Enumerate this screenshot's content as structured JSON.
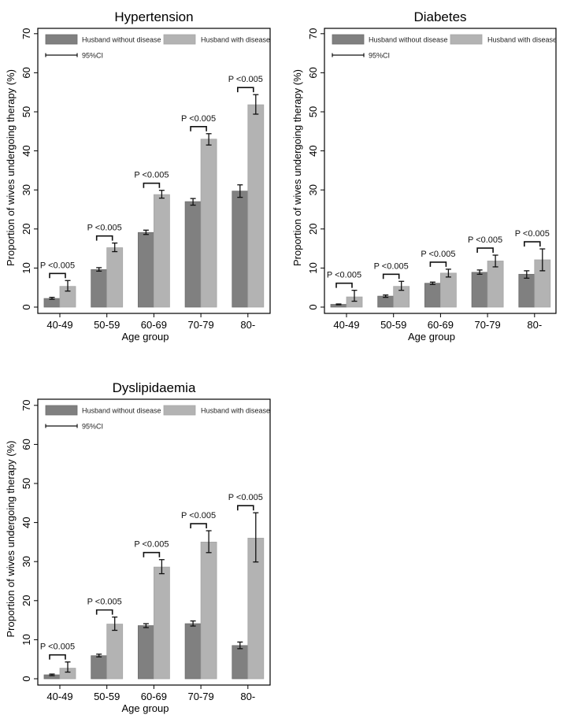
{
  "chart_data": [
    {
      "type": "bar",
      "title": "Hypertension",
      "xlabel": "Age group",
      "ylabel": "Proportion of wives undergoing therapy (%)",
      "ylim": [
        0,
        70
      ],
      "yticks": [
        0,
        10,
        20,
        30,
        40,
        50,
        60,
        70
      ],
      "categories": [
        "40-49",
        "50-59",
        "60-69",
        "70-79",
        "80-"
      ],
      "series": [
        {
          "name": "Husband without disease",
          "color": "#808080",
          "values": [
            2.2,
            9.6,
            19.1,
            27.0,
            29.7
          ],
          "ci_low": [
            2.0,
            9.2,
            18.6,
            26.1,
            28.1
          ],
          "ci_high": [
            2.5,
            10.1,
            19.7,
            27.8,
            31.3
          ]
        },
        {
          "name": "Husband with disease",
          "color": "#b3b3b3",
          "values": [
            5.3,
            15.2,
            28.8,
            43.0,
            51.8
          ],
          "ci_low": [
            4.1,
            14.2,
            27.9,
            41.5,
            49.4
          ],
          "ci_high": [
            6.8,
            16.4,
            29.9,
            44.4,
            54.4
          ]
        }
      ],
      "annotations": [
        "P <0.005",
        "P <0.005",
        "P <0.005",
        "P <0.005",
        "P <0.005"
      ],
      "legend": {
        "ci_label": "95%CI",
        "placement": "top"
      },
      "grid": false
    },
    {
      "type": "bar",
      "title": "Diabetes",
      "xlabel": "Age group",
      "ylabel": "Proportion of wives undergoing therapy (%)",
      "ylim": [
        0,
        70
      ],
      "yticks": [
        0,
        10,
        20,
        30,
        40,
        50,
        60,
        70
      ],
      "categories": [
        "40-49",
        "50-59",
        "60-69",
        "70-79",
        "80-"
      ],
      "series": [
        {
          "name": "Husband without disease",
          "color": "#808080",
          "values": [
            0.7,
            2.8,
            6.1,
            8.9,
            8.4
          ],
          "ci_low": [
            0.6,
            2.5,
            5.8,
            8.4,
            7.4
          ],
          "ci_high": [
            0.8,
            3.1,
            6.4,
            9.5,
            9.3
          ]
        },
        {
          "name": "Husband with disease",
          "color": "#b3b3b3",
          "values": [
            2.6,
            5.3,
            8.7,
            11.8,
            12.1
          ],
          "ci_low": [
            1.5,
            4.3,
            7.7,
            10.3,
            9.3
          ],
          "ci_high": [
            4.3,
            6.6,
            9.7,
            13.3,
            14.9
          ]
        }
      ],
      "annotations": [
        "P <0.005",
        "P <0.005",
        "P <0.005",
        "P <0.005",
        "P <0.005"
      ],
      "legend": {
        "ci_label": "95%CI",
        "placement": "top"
      },
      "grid": false
    },
    {
      "type": "bar",
      "title": "Dyslipidaemia",
      "xlabel": "Age group",
      "ylabel": "Proportion of wives undergoing therapy (%)",
      "ylim": [
        0,
        70
      ],
      "yticks": [
        0,
        10,
        20,
        30,
        40,
        50,
        60,
        70
      ],
      "categories": [
        "40-49",
        "50-59",
        "60-69",
        "70-79",
        "80-"
      ],
      "series": [
        {
          "name": "Husband without disease",
          "color": "#808080",
          "values": [
            1.0,
            5.9,
            13.6,
            14.1,
            8.5
          ],
          "ci_low": [
            0.8,
            5.6,
            13.1,
            13.5,
            7.7
          ],
          "ci_high": [
            1.2,
            6.3,
            14.1,
            14.8,
            9.4
          ]
        },
        {
          "name": "Husband with disease",
          "color": "#b3b3b3",
          "values": [
            2.7,
            14.0,
            28.6,
            35.0,
            36.0
          ],
          "ci_low": [
            1.7,
            12.4,
            26.9,
            32.3,
            29.9
          ],
          "ci_high": [
            4.3,
            15.8,
            30.5,
            37.9,
            42.5
          ]
        }
      ],
      "annotations": [
        "P <0.005",
        "P <0.005",
        "P <0.005",
        "P <0.005",
        "P <0.005"
      ],
      "legend": {
        "ci_label": "95%CI",
        "placement": "top"
      },
      "grid": false
    }
  ]
}
